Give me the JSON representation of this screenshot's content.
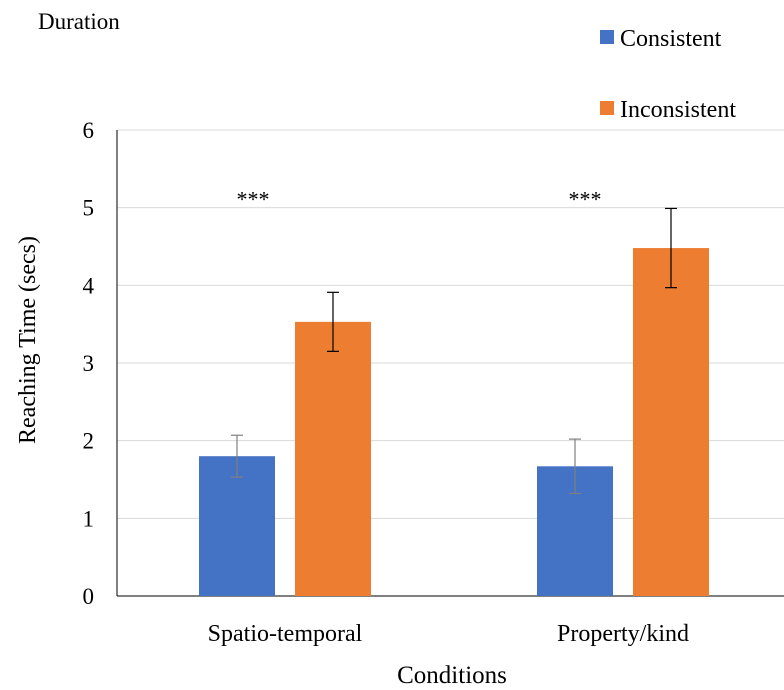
{
  "chart_data": {
    "type": "bar",
    "title": "Duration",
    "xlabel": "Conditions",
    "ylabel": "Reaching Time (secs)",
    "ylim": [
      0,
      6
    ],
    "yticks": [
      "0",
      "1",
      "2",
      "3",
      "4",
      "5",
      "6"
    ],
    "grid": true,
    "legend_position": "top-right",
    "categories": [
      "Spatio-temporal",
      "Property/kind"
    ],
    "series": [
      {
        "name": "Consistent",
        "color": "#4472C4",
        "values": [
          1.8,
          1.67
        ],
        "error": [
          0.27,
          0.35
        ]
      },
      {
        "name": "Inconsistent",
        "color": "#ED7D31",
        "values": [
          3.53,
          4.48
        ],
        "error": [
          0.38,
          0.51
        ]
      }
    ],
    "annotations": [
      "***",
      "***"
    ]
  }
}
